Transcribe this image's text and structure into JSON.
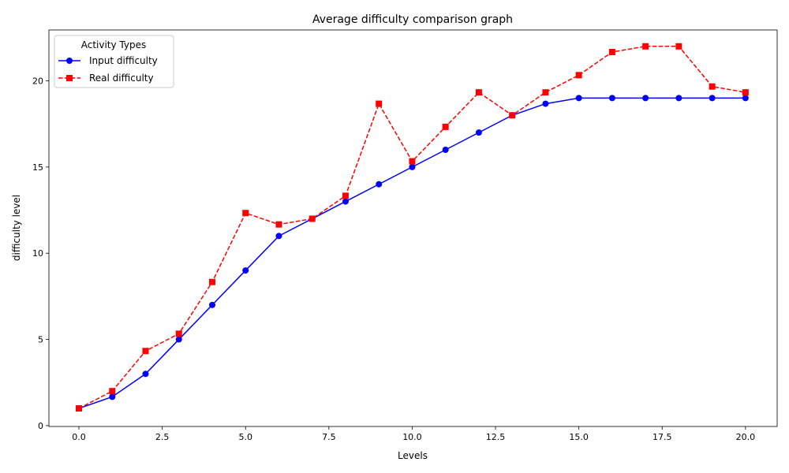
{
  "chart_data": {
    "type": "line",
    "title": "Average difficulty comparison graph",
    "xlabel": "Levels",
    "ylabel": "difficulty level",
    "xlim": [
      -0.9,
      20.95
    ],
    "ylim": [
      -0.05,
      22.95
    ],
    "xticks": [
      "0.0",
      "2.5",
      "5.0",
      "7.5",
      "10.0",
      "12.5",
      "15.0",
      "17.5",
      "20.0"
    ],
    "yticks": [
      "0",
      "5",
      "10",
      "15",
      "20"
    ],
    "legend": {
      "title": "Activity Types",
      "position": "top-left"
    },
    "grid": false,
    "x": [
      0,
      1,
      2,
      3,
      4,
      5,
      6,
      7,
      8,
      9,
      10,
      11,
      12,
      13,
      14,
      15,
      16,
      17,
      18,
      19,
      20
    ],
    "series": [
      {
        "name": "Input difficulty",
        "color": "#0000ff",
        "style": "solid",
        "marker": "circle",
        "values": [
          1.0,
          1.67,
          3.0,
          5.0,
          7.0,
          9.0,
          11.0,
          12.0,
          13.0,
          14.0,
          15.0,
          16.0,
          17.0,
          18.0,
          18.67,
          19.0,
          19.0,
          19.0,
          19.0,
          19.0,
          19.0
        ]
      },
      {
        "name": "Real difficulty",
        "color": "#ff0000",
        "style": "dashed",
        "marker": "square",
        "values": [
          1.0,
          2.0,
          4.33,
          5.33,
          8.33,
          12.33,
          11.67,
          12.0,
          13.33,
          18.67,
          15.33,
          17.33,
          19.33,
          18.0,
          19.33,
          20.33,
          21.67,
          22.0,
          22.0,
          19.67,
          19.33
        ]
      }
    ]
  }
}
